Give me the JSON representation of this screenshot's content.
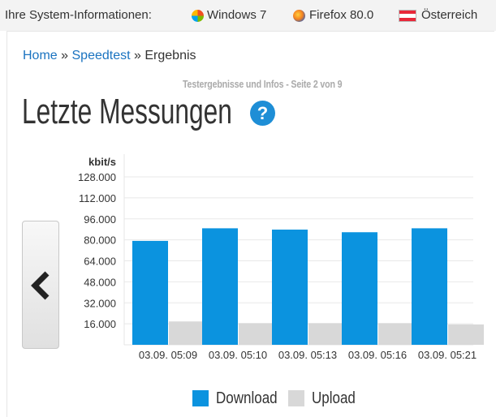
{
  "sysbar": {
    "label": "Ihre System-Informationen:",
    "os": "Windows 7",
    "browser": "Firefox 80.0",
    "country": "Österreich"
  },
  "breadcrumb": {
    "home": "Home",
    "sep1": "»",
    "speedtest": "Speedtest",
    "sep2": "»",
    "current": "Ergebnis"
  },
  "subtitle": "Testergebnisse und Infos - Seite 2 von 9",
  "title": "Letzte Messungen",
  "help_symbol": "?",
  "colors": {
    "download": "#0b93df",
    "upload": "#d8d8d8",
    "accent": "#1a73c0"
  },
  "icons": {
    "os": "windows-icon",
    "browser": "firefox-icon",
    "country": "austria-flag-icon",
    "prev": "chevron-left-icon",
    "help": "question-icon"
  },
  "legend": {
    "download": "Download",
    "upload": "Upload"
  },
  "chart_data": {
    "type": "bar",
    "ylabel": "kbit/s",
    "categories": [
      "03.09. 05:09",
      "03.09. 05:10",
      "03.09. 05:13",
      "03.09. 05:16",
      "03.09. 05:21"
    ],
    "series": [
      {
        "name": "Download",
        "values": [
          79200,
          88800,
          87800,
          85800,
          88800
        ]
      },
      {
        "name": "Upload",
        "values": [
          17800,
          16500,
          16500,
          16500,
          15500
        ]
      }
    ],
    "yticks": [
      "16.000",
      "32.000",
      "48.000",
      "64.000",
      "80.000",
      "96.000",
      "112.000",
      "128.000"
    ],
    "ylim": [
      0,
      128000
    ],
    "grid": true,
    "legend_position": "bottom"
  }
}
